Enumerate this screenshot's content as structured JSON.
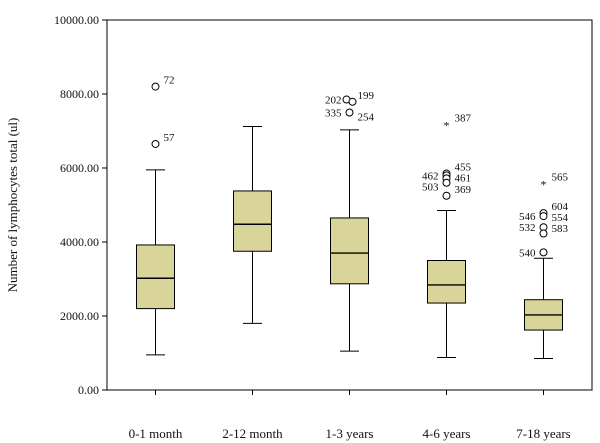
{
  "chart_data": {
    "type": "boxplot",
    "ylabel": "Number of lymphocytes total (ul)",
    "xlabel": "",
    "ylim": [
      0,
      10000
    ],
    "yticks": [
      {
        "value": 0,
        "label": "0.00"
      },
      {
        "value": 2000,
        "label": "2000.00"
      },
      {
        "value": 4000,
        "label": "4000.00"
      },
      {
        "value": 6000,
        "label": "6000.00"
      },
      {
        "value": 8000,
        "label": "8000.00"
      },
      {
        "value": 10000,
        "label": "10000.00"
      }
    ],
    "box_color": "#d9d49a",
    "groups": [
      {
        "category": "0-1 month",
        "whisker_low": 950,
        "q1": 2200,
        "median": 3020,
        "q3": 3920,
        "whisker_high": 5950,
        "outliers": [
          {
            "value": 8200,
            "label": "72",
            "marker": "circle",
            "dx": 0
          },
          {
            "value": 6650,
            "label": "57",
            "marker": "circle",
            "dx": 0
          }
        ]
      },
      {
        "category": "2-12 month",
        "whisker_low": 1800,
        "q1": 3750,
        "median": 4480,
        "q3": 5380,
        "whisker_high": 7120,
        "outliers": []
      },
      {
        "category": "1-3 years",
        "whisker_low": 1050,
        "q1": 2870,
        "median": 3700,
        "q3": 4650,
        "whisker_high": 7030,
        "outliers": [
          {
            "value": 7850,
            "label": "202",
            "marker": "circle",
            "dx": -1
          },
          {
            "value": 7790,
            "label": "199",
            "marker": "circle",
            "dx": 1
          },
          {
            "value": 7500,
            "label": "335",
            "marker": "circle",
            "dx": 0
          },
          {
            "value": 7200,
            "label": "254",
            "marker": "none",
            "dx": 0
          }
        ]
      },
      {
        "category": "4-6 years",
        "whisker_low": 880,
        "q1": 2350,
        "median": 2840,
        "q3": 3500,
        "whisker_high": 4850,
        "outliers": [
          {
            "value": 7180,
            "label": "387",
            "marker": "star",
            "dx": 0
          },
          {
            "value": 5850,
            "label": "455",
            "marker": "circle",
            "dx": 0
          },
          {
            "value": 5800,
            "label": "462",
            "marker": "circle",
            "dx": 0
          },
          {
            "value": 5720,
            "label": "461",
            "marker": "circle",
            "dx": 0
          },
          {
            "value": 5600,
            "label": "503",
            "marker": "circle",
            "dx": 0
          },
          {
            "value": 5250,
            "label": "369",
            "marker": "circle",
            "dx": 0
          }
        ]
      },
      {
        "category": "7-18 years",
        "whisker_low": 850,
        "q1": 1620,
        "median": 2030,
        "q3": 2440,
        "whisker_high": 3560,
        "outliers": [
          {
            "value": 5580,
            "label": "565",
            "marker": "star",
            "dx": 0
          },
          {
            "value": 4780,
            "label": "604",
            "marker": "circle",
            "dx": 0
          },
          {
            "value": 4700,
            "label": "546",
            "marker": "circle",
            "dx": 0
          },
          {
            "value": 4580,
            "label": "554",
            "marker": "none",
            "dx": 0
          },
          {
            "value": 4400,
            "label": "532",
            "marker": "circle",
            "dx": 0
          },
          {
            "value": 4230,
            "label": "583",
            "marker": "circle",
            "dx": 0
          },
          {
            "value": 3720,
            "label": "540",
            "marker": "circle",
            "dx": 0
          }
        ]
      }
    ]
  }
}
